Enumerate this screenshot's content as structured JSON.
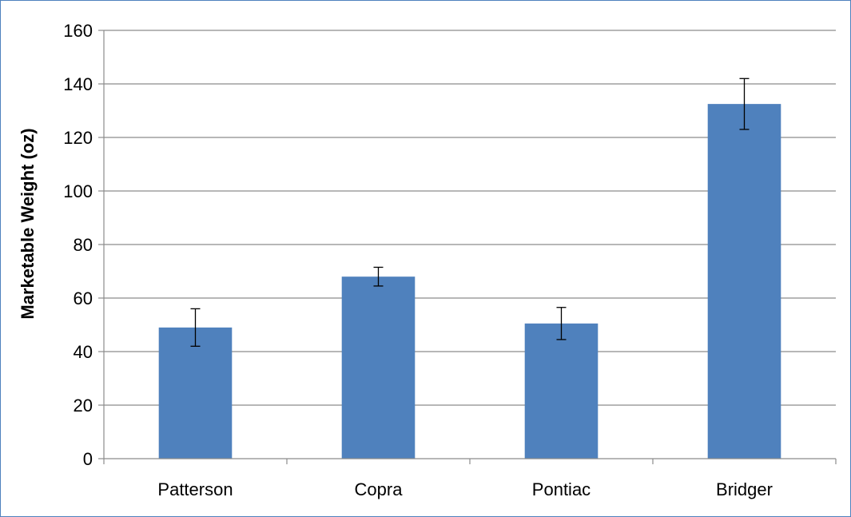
{
  "chart_data": {
    "type": "bar",
    "title": "",
    "xlabel": "",
    "ylabel": "Marketable Weight (oz)",
    "categories": [
      "Patterson",
      "Copra",
      "Pontiac",
      "Bridger"
    ],
    "series": [
      {
        "values": [
          49,
          68,
          50.5,
          132.5
        ],
        "error": [
          7,
          3.5,
          6,
          9.5
        ],
        "color": "#4f81bd"
      }
    ],
    "ylim": [
      0,
      160
    ],
    "yticks": [
      0,
      20,
      40,
      60,
      80,
      100,
      120,
      140,
      160
    ],
    "grid": true,
    "legend": "none"
  }
}
